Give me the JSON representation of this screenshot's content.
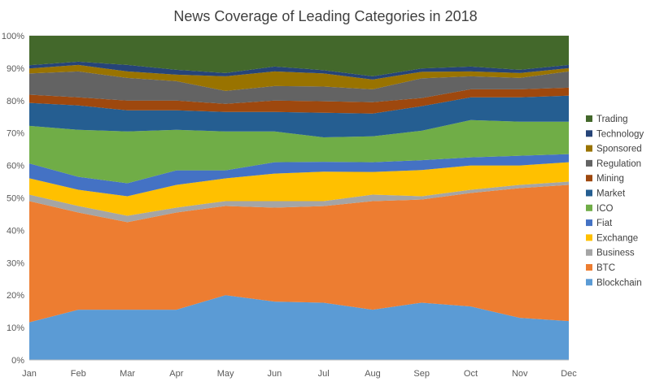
{
  "chart_data": {
    "type": "area",
    "stacked": true,
    "normalized": true,
    "title": "News Coverage of Leading Categories in 2018",
    "categories": [
      "Jan",
      "Feb",
      "Mar",
      "Apr",
      "May",
      "Jun",
      "Jul",
      "Aug",
      "Sep",
      "Oct",
      "Nov",
      "Dec"
    ],
    "y_ticks": [
      "0%",
      "10%",
      "20%",
      "30%",
      "40%",
      "50%",
      "60%",
      "70%",
      "80%",
      "90%",
      "100%"
    ],
    "ylim": [
      0,
      100
    ],
    "grid": true,
    "legend_position": "right",
    "series": [
      {
        "name": "Blockchain",
        "color": "#5b9bd5",
        "values": [
          11.5,
          15.5,
          15.5,
          15.5,
          20,
          18,
          17.5,
          15.5,
          17.5,
          16.5,
          13,
          12
        ]
      },
      {
        "name": "BTC",
        "color": "#ed7d31",
        "values": [
          37,
          30,
          27,
          30,
          27.5,
          29,
          29.5,
          33.5,
          31.5,
          35,
          40,
          42
        ]
      },
      {
        "name": "Business",
        "color": "#a5a5a5",
        "values": [
          2,
          2,
          2,
          1.5,
          1.5,
          2,
          1.5,
          2,
          1,
          1,
          1,
          1
        ]
      },
      {
        "name": "Exchange",
        "color": "#ffc000",
        "values": [
          5,
          5,
          6,
          7,
          7,
          8.5,
          9,
          7,
          8,
          7.5,
          6,
          6
        ]
      },
      {
        "name": "Fiat",
        "color": "#4472c4",
        "values": [
          4.5,
          4,
          4,
          4.5,
          2.5,
          3.5,
          3,
          3,
          3,
          2.5,
          3,
          2.5
        ]
      },
      {
        "name": "ICO",
        "color": "#70ad47",
        "values": [
          11.5,
          14.5,
          16,
          12.5,
          12,
          9.5,
          7.5,
          8,
          9,
          11.5,
          10.5,
          10
        ]
      },
      {
        "name": "Market",
        "color": "#255e91",
        "values": [
          7,
          7.5,
          6.5,
          6,
          6,
          6,
          7.5,
          7,
          7.5,
          7,
          7.5,
          8
        ]
      },
      {
        "name": "Mining",
        "color": "#9e480e",
        "values": [
          2.5,
          2.5,
          3,
          3,
          2.5,
          3.5,
          3.5,
          3.5,
          2.5,
          2.5,
          2.5,
          2.5
        ]
      },
      {
        "name": "Regulation",
        "color": "#636363",
        "values": [
          6.5,
          8,
          7,
          6,
          4,
          4.5,
          4.5,
          4,
          6,
          4,
          3.5,
          5
        ]
      },
      {
        "name": "Sponsored",
        "color": "#997300",
        "values": [
          1.5,
          2,
          2,
          2,
          4.5,
          4.5,
          4,
          3,
          2,
          1.5,
          1.5,
          1
        ]
      },
      {
        "name": "Technology",
        "color": "#264478",
        "values": [
          1,
          1,
          2,
          1.5,
          1,
          1.5,
          1,
          1,
          1,
          1.5,
          1,
          1
        ]
      },
      {
        "name": "Trading",
        "color": "#43682b",
        "values": [
          9,
          8,
          9,
          10.5,
          11.5,
          9.5,
          10.5,
          12.5,
          10,
          9.5,
          10.5,
          9
        ]
      }
    ]
  }
}
